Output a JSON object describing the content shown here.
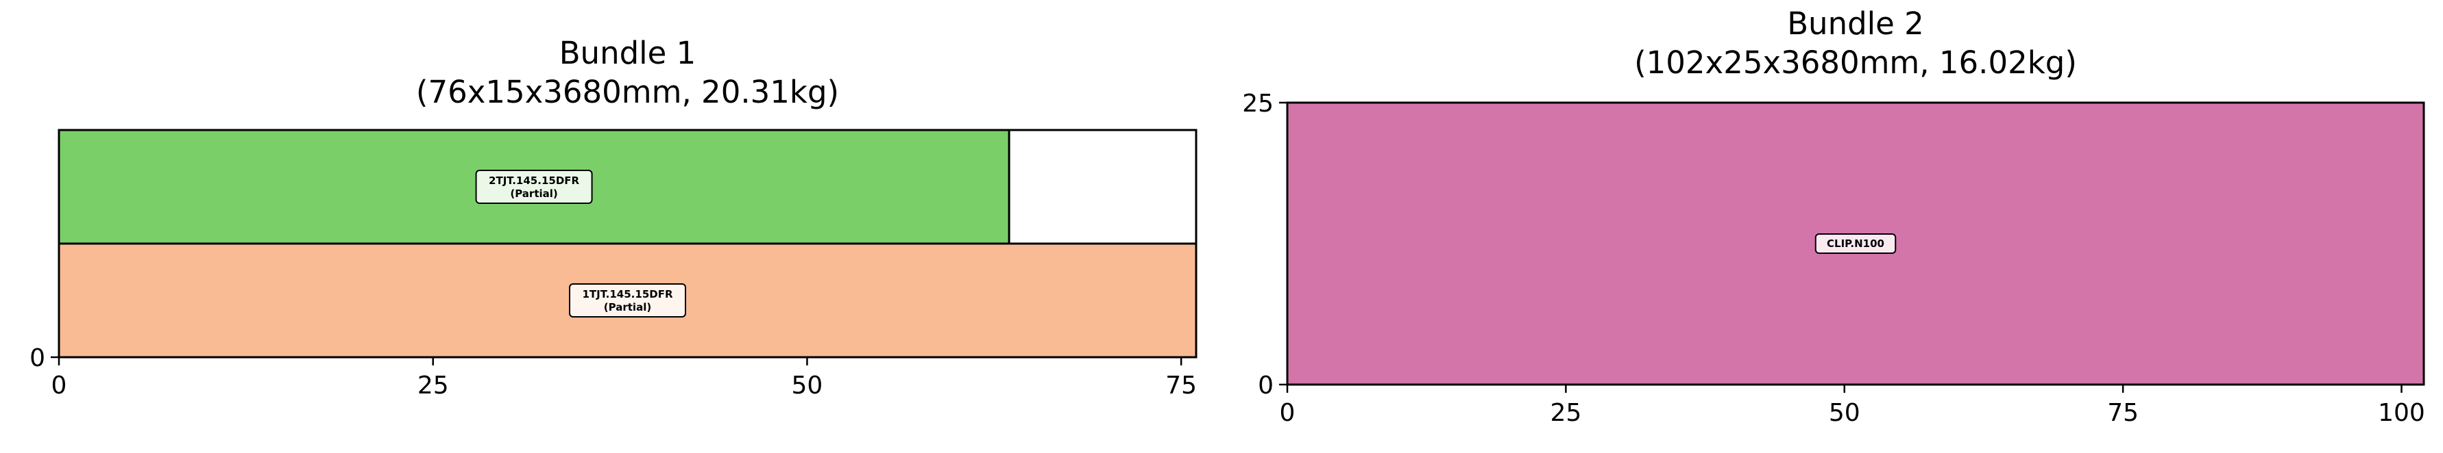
{
  "chart_data": [
    {
      "type": "bar",
      "title_line1": "Bundle 1",
      "title_line2": "(76x15x3680mm, 20.31kg)",
      "xlim": [
        0,
        76
      ],
      "ylim": [
        0,
        15
      ],
      "xticks": [
        "0",
        "25",
        "50",
        "75"
      ],
      "xtick_values": [
        0,
        25,
        50,
        75
      ],
      "yticks": [
        "0"
      ],
      "ytick_values": [
        0
      ],
      "grid": false,
      "pieces": [
        {
          "label_line1": "1TJT.145.15DFR",
          "label_line2": "(Partial)",
          "x0": 0,
          "x1": 76,
          "y0": 0,
          "y1": 7.5,
          "color": "#f8bb94"
        },
        {
          "label_line1": "2TJT.145.15DFR",
          "label_line2": "(Partial)",
          "x0": 0,
          "x1": 63.5,
          "y0": 7.5,
          "y1": 15,
          "color": "#7acf69"
        }
      ]
    },
    {
      "type": "bar",
      "title_line1": "Bundle 2",
      "title_line2": "(102x25x3680mm, 16.02kg)",
      "xlim": [
        0,
        102
      ],
      "ylim": [
        0,
        25
      ],
      "xticks": [
        "0",
        "25",
        "50",
        "75",
        "100"
      ],
      "xtick_values": [
        0,
        25,
        50,
        75,
        100
      ],
      "yticks": [
        "0",
        "25"
      ],
      "ytick_values": [
        0,
        25
      ],
      "grid": false,
      "pieces": [
        {
          "label_line1": "CLIP.N100",
          "label_line2": "",
          "x0": 0,
          "x1": 102,
          "y0": 0,
          "y1": 25,
          "color": "#d475aa"
        }
      ]
    }
  ]
}
